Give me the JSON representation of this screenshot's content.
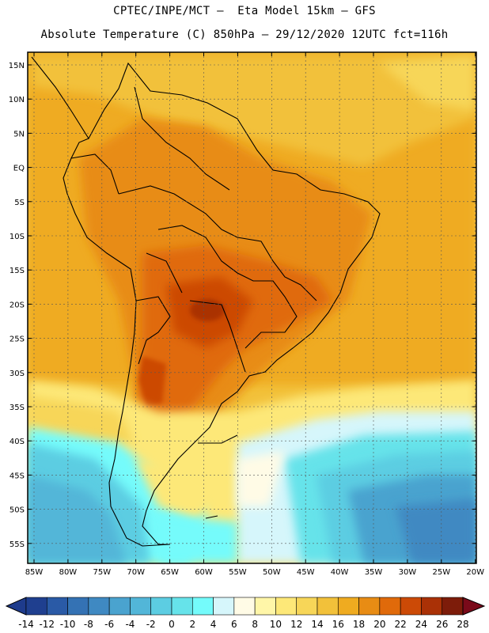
{
  "header": {
    "line1": "CPTEC/INPE/MCT –  Eta Model 15km – GFS",
    "line2": "Absolute Temperature (C) 850hPa – 29/12/2020 12UTC fct=116h"
  },
  "map": {
    "lat_labels": [
      "15N",
      "10N",
      "5N",
      "EQ",
      "5S",
      "10S",
      "15S",
      "20S",
      "25S",
      "30S",
      "35S",
      "40S",
      "45S",
      "50S",
      "55S"
    ],
    "lon_labels": [
      "85W",
      "80W",
      "75W",
      "70W",
      "65W",
      "60W",
      "55W",
      "50W",
      "45W",
      "40W",
      "35W",
      "30W",
      "25W",
      "20W"
    ]
  },
  "colorbar": {
    "labels": [
      "-14",
      "-12",
      "-10",
      "-8",
      "-6",
      "-4",
      "-2",
      "0",
      "2",
      "4",
      "6",
      "8",
      "10",
      "12",
      "14",
      "16",
      "18",
      "20",
      "22",
      "24",
      "26",
      "28"
    ],
    "colors": [
      "#1f3f8f",
      "#2a5aa6",
      "#3472b4",
      "#3f89c2",
      "#4aa3cf",
      "#52b6d8",
      "#5ccde2",
      "#66e3ea",
      "#74fbfb",
      "#d6f6fb",
      "#fffbe6",
      "#fff6a8",
      "#fde878",
      "#f7d658",
      "#f2c13a",
      "#efab20",
      "#e88c14",
      "#e06a0a",
      "#cc4a06",
      "#aa3106",
      "#7d1c0a"
    ],
    "min_color": "#1e3b8c",
    "max_color": "#7a0a1a"
  }
}
